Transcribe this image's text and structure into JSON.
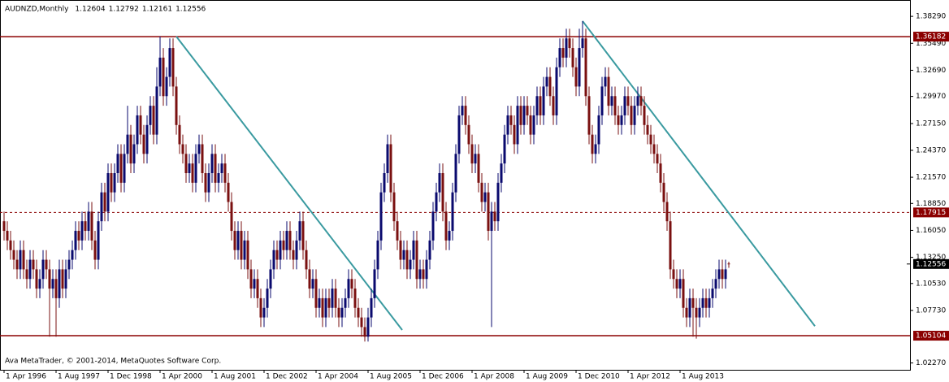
{
  "chart_data": {
    "type": "candlestick",
    "title": "AUDNZD,Monthly",
    "last_ohlc": [
      1.12604,
      1.12792,
      1.12161,
      1.12556
    ],
    "footer": "Ava MetaTrader, © 2001-2014, MetaQuotes Software Corp.",
    "bull_color": "#0a0a6e",
    "bear_color": "#7a1010",
    "level_color": "#8b0000",
    "trend_color": "#3a9aa0",
    "xlim": [
      -1.25,
      278.75
    ],
    "ylim": [
      1.0156,
      1.3999
    ],
    "yticks": [
      {
        "value": 1.3829,
        "label": "1.38290"
      },
      {
        "value": 1.3549,
        "label": "1.35490"
      },
      {
        "value": 1.3269,
        "label": "1.32690"
      },
      {
        "value": 1.2997,
        "label": "1.29970"
      },
      {
        "value": 1.2715,
        "label": "1.27150"
      },
      {
        "value": 1.2437,
        "label": "1.24370"
      },
      {
        "value": 1.2157,
        "label": "1.21570"
      },
      {
        "value": 1.1885,
        "label": "1.18850"
      },
      {
        "value": 1.1605,
        "label": "1.16050"
      },
      {
        "value": 1.1325,
        "label": "1.13250"
      },
      {
        "value": 1.1053,
        "label": "1.10530"
      },
      {
        "value": 1.0773,
        "label": "1.07730"
      },
      {
        "value": 1.0227,
        "label": "1.02270"
      }
    ],
    "xticks": [
      {
        "value": 0,
        "label": "1 Apr 1996"
      },
      {
        "value": 16,
        "label": "1 Aug 1997"
      },
      {
        "value": 32,
        "label": "1 Dec 1998"
      },
      {
        "value": 48,
        "label": "1 Apr 2000"
      },
      {
        "value": 64,
        "label": "1 Aug 2001"
      },
      {
        "value": 80,
        "label": "1 Dec 2002"
      },
      {
        "value": 96,
        "label": "1 Apr 2004"
      },
      {
        "value": 112,
        "label": "1 Aug 2005"
      },
      {
        "value": 128,
        "label": "1 Dec 2006"
      },
      {
        "value": 144,
        "label": "1 Apr 2008"
      },
      {
        "value": 160,
        "label": "1 Aug 2009"
      },
      {
        "value": 176,
        "label": "1 Dec 2010"
      },
      {
        "value": 192,
        "label": "1 Apr 2012"
      },
      {
        "value": 208,
        "label": "1 Aug 2013"
      }
    ],
    "levels": [
      {
        "value": 1.36182,
        "dashed": false
      },
      {
        "value": 1.17915,
        "dashed": true
      },
      {
        "value": 1.05104,
        "dashed": false
      }
    ],
    "current_price": 1.12556,
    "trendlines": [
      {
        "start": [
          53,
          1.362
        ],
        "end": [
          122.5,
          1.057
        ]
      },
      {
        "start": [
          178,
          1.378
        ],
        "end": [
          249.5,
          1.061
        ]
      }
    ],
    "candles": [
      [
        1.17,
        1.18,
        1.15,
        1.16
      ],
      [
        1.16,
        1.17,
        1.14,
        1.15
      ],
      [
        1.15,
        1.16,
        1.13,
        1.14
      ],
      [
        1.14,
        1.15,
        1.12,
        1.13
      ],
      [
        1.13,
        1.14,
        1.11,
        1.12
      ],
      [
        1.12,
        1.15,
        1.11,
        1.14
      ],
      [
        1.14,
        1.15,
        1.11,
        1.12
      ],
      [
        1.12,
        1.13,
        1.1,
        1.11
      ],
      [
        1.11,
        1.14,
        1.1,
        1.13
      ],
      [
        1.13,
        1.14,
        1.11,
        1.12
      ],
      [
        1.12,
        1.13,
        1.09,
        1.1
      ],
      [
        1.1,
        1.12,
        1.09,
        1.11
      ],
      [
        1.11,
        1.14,
        1.1,
        1.13
      ],
      [
        1.13,
        1.14,
        1.11,
        1.12
      ],
      [
        1.12,
        1.13,
        1.05,
        1.1
      ],
      [
        1.1,
        1.12,
        1.09,
        1.11
      ],
      [
        1.11,
        1.12,
        1.05,
        1.09
      ],
      [
        1.09,
        1.13,
        1.08,
        1.12
      ],
      [
        1.12,
        1.13,
        1.09,
        1.1
      ],
      [
        1.1,
        1.13,
        1.09,
        1.12
      ],
      [
        1.12,
        1.14,
        1.11,
        1.13
      ],
      [
        1.13,
        1.15,
        1.12,
        1.14
      ],
      [
        1.14,
        1.17,
        1.13,
        1.16
      ],
      [
        1.16,
        1.17,
        1.14,
        1.15
      ],
      [
        1.15,
        1.18,
        1.14,
        1.17
      ],
      [
        1.17,
        1.18,
        1.15,
        1.16
      ],
      [
        1.16,
        1.19,
        1.15,
        1.18
      ],
      [
        1.18,
        1.19,
        1.14,
        1.15
      ],
      [
        1.15,
        1.16,
        1.12,
        1.13
      ],
      [
        1.13,
        1.18,
        1.12,
        1.17
      ],
      [
        1.17,
        1.21,
        1.16,
        1.2
      ],
      [
        1.2,
        1.21,
        1.17,
        1.18
      ],
      [
        1.18,
        1.23,
        1.17,
        1.22
      ],
      [
        1.22,
        1.23,
        1.19,
        1.2
      ],
      [
        1.2,
        1.23,
        1.19,
        1.22
      ],
      [
        1.22,
        1.25,
        1.21,
        1.24
      ],
      [
        1.24,
        1.25,
        1.2,
        1.21
      ],
      [
        1.21,
        1.25,
        1.2,
        1.24
      ],
      [
        1.24,
        1.29,
        1.23,
        1.26
      ],
      [
        1.26,
        1.27,
        1.22,
        1.23
      ],
      [
        1.23,
        1.26,
        1.22,
        1.25
      ],
      [
        1.25,
        1.29,
        1.24,
        1.28
      ],
      [
        1.28,
        1.29,
        1.25,
        1.26
      ],
      [
        1.26,
        1.27,
        1.23,
        1.24
      ],
      [
        1.24,
        1.28,
        1.23,
        1.27
      ],
      [
        1.27,
        1.3,
        1.26,
        1.29
      ],
      [
        1.29,
        1.3,
        1.25,
        1.26
      ],
      [
        1.26,
        1.33,
        1.25,
        1.31
      ],
      [
        1.31,
        1.362,
        1.3,
        1.34
      ],
      [
        1.34,
        1.35,
        1.29,
        1.3
      ],
      [
        1.3,
        1.33,
        1.29,
        1.32
      ],
      [
        1.32,
        1.36,
        1.31,
        1.35
      ],
      [
        1.35,
        1.36,
        1.3,
        1.31
      ],
      [
        1.31,
        1.32,
        1.26,
        1.27
      ],
      [
        1.27,
        1.28,
        1.24,
        1.25
      ],
      [
        1.25,
        1.26,
        1.23,
        1.24
      ],
      [
        1.24,
        1.25,
        1.21,
        1.22
      ],
      [
        1.22,
        1.24,
        1.21,
        1.23
      ],
      [
        1.23,
        1.24,
        1.2,
        1.21
      ],
      [
        1.21,
        1.25,
        1.2,
        1.24
      ],
      [
        1.24,
        1.26,
        1.23,
        1.25
      ],
      [
        1.25,
        1.26,
        1.21,
        1.22
      ],
      [
        1.22,
        1.23,
        1.19,
        1.2
      ],
      [
        1.2,
        1.23,
        1.19,
        1.22
      ],
      [
        1.22,
        1.25,
        1.21,
        1.24
      ],
      [
        1.24,
        1.25,
        1.2,
        1.21
      ],
      [
        1.21,
        1.23,
        1.2,
        1.22
      ],
      [
        1.22,
        1.24,
        1.21,
        1.23
      ],
      [
        1.23,
        1.24,
        1.2,
        1.21
      ],
      [
        1.21,
        1.22,
        1.18,
        1.19
      ],
      [
        1.19,
        1.2,
        1.15,
        1.16
      ],
      [
        1.16,
        1.17,
        1.13,
        1.14
      ],
      [
        1.14,
        1.17,
        1.13,
        1.16
      ],
      [
        1.16,
        1.17,
        1.12,
        1.13
      ],
      [
        1.13,
        1.16,
        1.12,
        1.15
      ],
      [
        1.15,
        1.16,
        1.11,
        1.12
      ],
      [
        1.12,
        1.13,
        1.09,
        1.1
      ],
      [
        1.1,
        1.12,
        1.09,
        1.11
      ],
      [
        1.11,
        1.12,
        1.08,
        1.09
      ],
      [
        1.09,
        1.1,
        1.06,
        1.07
      ],
      [
        1.07,
        1.09,
        1.06,
        1.08
      ],
      [
        1.08,
        1.11,
        1.07,
        1.1
      ],
      [
        1.1,
        1.13,
        1.09,
        1.12
      ],
      [
        1.12,
        1.15,
        1.11,
        1.14
      ],
      [
        1.14,
        1.15,
        1.12,
        1.13
      ],
      [
        1.13,
        1.16,
        1.12,
        1.15
      ],
      [
        1.15,
        1.16,
        1.13,
        1.14
      ],
      [
        1.14,
        1.17,
        1.13,
        1.16
      ],
      [
        1.16,
        1.17,
        1.13,
        1.14
      ],
      [
        1.14,
        1.15,
        1.12,
        1.13
      ],
      [
        1.13,
        1.16,
        1.12,
        1.15
      ],
      [
        1.15,
        1.18,
        1.14,
        1.17
      ],
      [
        1.17,
        1.18,
        1.13,
        1.14
      ],
      [
        1.14,
        1.15,
        1.11,
        1.12
      ],
      [
        1.12,
        1.13,
        1.09,
        1.1
      ],
      [
        1.1,
        1.12,
        1.09,
        1.11
      ],
      [
        1.11,
        1.12,
        1.07,
        1.08
      ],
      [
        1.08,
        1.1,
        1.07,
        1.09
      ],
      [
        1.09,
        1.1,
        1.06,
        1.07
      ],
      [
        1.07,
        1.1,
        1.06,
        1.09
      ],
      [
        1.09,
        1.1,
        1.07,
        1.08
      ],
      [
        1.08,
        1.11,
        1.07,
        1.1
      ],
      [
        1.1,
        1.11,
        1.07,
        1.08
      ],
      [
        1.08,
        1.09,
        1.06,
        1.07
      ],
      [
        1.07,
        1.09,
        1.06,
        1.08
      ],
      [
        1.08,
        1.1,
        1.07,
        1.09
      ],
      [
        1.09,
        1.12,
        1.08,
        1.11
      ],
      [
        1.11,
        1.12,
        1.09,
        1.1
      ],
      [
        1.1,
        1.11,
        1.07,
        1.08
      ],
      [
        1.08,
        1.09,
        1.06,
        1.07
      ],
      [
        1.07,
        1.08,
        1.05,
        1.06
      ],
      [
        1.06,
        1.07,
        1.045,
        1.05
      ],
      [
        1.05,
        1.08,
        1.045,
        1.07
      ],
      [
        1.07,
        1.1,
        1.06,
        1.09
      ],
      [
        1.09,
        1.13,
        1.08,
        1.12
      ],
      [
        1.12,
        1.16,
        1.11,
        1.15
      ],
      [
        1.15,
        1.21,
        1.14,
        1.2
      ],
      [
        1.2,
        1.23,
        1.19,
        1.22
      ],
      [
        1.22,
        1.26,
        1.21,
        1.25
      ],
      [
        1.25,
        1.26,
        1.19,
        1.2
      ],
      [
        1.2,
        1.21,
        1.16,
        1.17
      ],
      [
        1.17,
        1.18,
        1.14,
        1.15
      ],
      [
        1.15,
        1.16,
        1.12,
        1.13
      ],
      [
        1.13,
        1.15,
        1.12,
        1.14
      ],
      [
        1.14,
        1.15,
        1.11,
        1.12
      ],
      [
        1.12,
        1.14,
        1.11,
        1.13
      ],
      [
        1.13,
        1.16,
        1.12,
        1.15
      ],
      [
        1.15,
        1.16,
        1.1,
        1.11
      ],
      [
        1.11,
        1.13,
        1.1,
        1.12
      ],
      [
        1.12,
        1.13,
        1.1,
        1.11
      ],
      [
        1.11,
        1.14,
        1.1,
        1.13
      ],
      [
        1.13,
        1.16,
        1.12,
        1.15
      ],
      [
        1.15,
        1.19,
        1.14,
        1.18
      ],
      [
        1.18,
        1.21,
        1.17,
        1.2
      ],
      [
        1.2,
        1.23,
        1.19,
        1.22
      ],
      [
        1.22,
        1.23,
        1.17,
        1.18
      ],
      [
        1.18,
        1.19,
        1.14,
        1.15
      ],
      [
        1.15,
        1.17,
        1.14,
        1.16
      ],
      [
        1.16,
        1.21,
        1.15,
        1.2
      ],
      [
        1.2,
        1.25,
        1.19,
        1.24
      ],
      [
        1.24,
        1.29,
        1.23,
        1.28
      ],
      [
        1.28,
        1.3,
        1.27,
        1.29
      ],
      [
        1.29,
        1.3,
        1.26,
        1.27
      ],
      [
        1.27,
        1.28,
        1.24,
        1.25
      ],
      [
        1.25,
        1.26,
        1.22,
        1.23
      ],
      [
        1.23,
        1.25,
        1.22,
        1.24
      ],
      [
        1.24,
        1.25,
        1.2,
        1.21
      ],
      [
        1.21,
        1.22,
        1.18,
        1.19
      ],
      [
        1.19,
        1.21,
        1.18,
        1.2
      ],
      [
        1.2,
        1.21,
        1.15,
        1.16
      ],
      [
        1.16,
        1.19,
        1.06,
        1.18
      ],
      [
        1.18,
        1.19,
        1.16,
        1.17
      ],
      [
        1.17,
        1.22,
        1.16,
        1.21
      ],
      [
        1.21,
        1.24,
        1.2,
        1.23
      ],
      [
        1.23,
        1.27,
        1.22,
        1.26
      ],
      [
        1.26,
        1.29,
        1.25,
        1.28
      ],
      [
        1.28,
        1.29,
        1.26,
        1.27
      ],
      [
        1.27,
        1.28,
        1.24,
        1.25
      ],
      [
        1.25,
        1.3,
        1.24,
        1.29
      ],
      [
        1.29,
        1.3,
        1.26,
        1.27
      ],
      [
        1.27,
        1.3,
        1.26,
        1.29
      ],
      [
        1.29,
        1.3,
        1.27,
        1.28
      ],
      [
        1.28,
        1.29,
        1.25,
        1.26
      ],
      [
        1.26,
        1.29,
        1.25,
        1.28
      ],
      [
        1.28,
        1.31,
        1.27,
        1.3
      ],
      [
        1.3,
        1.31,
        1.27,
        1.28
      ],
      [
        1.28,
        1.32,
        1.27,
        1.31
      ],
      [
        1.31,
        1.33,
        1.3,
        1.32
      ],
      [
        1.32,
        1.33,
        1.29,
        1.3
      ],
      [
        1.3,
        1.31,
        1.27,
        1.28
      ],
      [
        1.28,
        1.34,
        1.27,
        1.33
      ],
      [
        1.33,
        1.36,
        1.32,
        1.35
      ],
      [
        1.35,
        1.36,
        1.33,
        1.34
      ],
      [
        1.34,
        1.37,
        1.33,
        1.36
      ],
      [
        1.36,
        1.37,
        1.34,
        1.35
      ],
      [
        1.35,
        1.36,
        1.32,
        1.33
      ],
      [
        1.33,
        1.34,
        1.3,
        1.31
      ],
      [
        1.31,
        1.37,
        1.3,
        1.35
      ],
      [
        1.35,
        1.378,
        1.34,
        1.36
      ],
      [
        1.36,
        1.37,
        1.29,
        1.3
      ],
      [
        1.3,
        1.31,
        1.25,
        1.26
      ],
      [
        1.26,
        1.27,
        1.23,
        1.24
      ],
      [
        1.24,
        1.26,
        1.23,
        1.25
      ],
      [
        1.25,
        1.29,
        1.24,
        1.28
      ],
      [
        1.28,
        1.32,
        1.27,
        1.31
      ],
      [
        1.31,
        1.33,
        1.3,
        1.32
      ],
      [
        1.32,
        1.33,
        1.28,
        1.29
      ],
      [
        1.29,
        1.31,
        1.28,
        1.3
      ],
      [
        1.3,
        1.31,
        1.27,
        1.28
      ],
      [
        1.28,
        1.29,
        1.26,
        1.27
      ],
      [
        1.27,
        1.29,
        1.26,
        1.28
      ],
      [
        1.28,
        1.31,
        1.27,
        1.3
      ],
      [
        1.3,
        1.31,
        1.28,
        1.29
      ],
      [
        1.29,
        1.3,
        1.26,
        1.27
      ],
      [
        1.27,
        1.3,
        1.26,
        1.29
      ],
      [
        1.29,
        1.31,
        1.28,
        1.3
      ],
      [
        1.3,
        1.31,
        1.28,
        1.29
      ],
      [
        1.29,
        1.3,
        1.26,
        1.27
      ],
      [
        1.27,
        1.28,
        1.25,
        1.26
      ],
      [
        1.26,
        1.27,
        1.24,
        1.25
      ],
      [
        1.25,
        1.26,
        1.23,
        1.24
      ],
      [
        1.24,
        1.25,
        1.22,
        1.23
      ],
      [
        1.23,
        1.24,
        1.2,
        1.21
      ],
      [
        1.21,
        1.22,
        1.18,
        1.19
      ],
      [
        1.19,
        1.2,
        1.16,
        1.17
      ],
      [
        1.17,
        1.18,
        1.11,
        1.12
      ],
      [
        1.12,
        1.13,
        1.1,
        1.11
      ],
      [
        1.11,
        1.12,
        1.09,
        1.1
      ],
      [
        1.1,
        1.12,
        1.09,
        1.11
      ],
      [
        1.11,
        1.12,
        1.07,
        1.08
      ],
      [
        1.08,
        1.09,
        1.06,
        1.07
      ],
      [
        1.07,
        1.1,
        1.06,
        1.09
      ],
      [
        1.09,
        1.1,
        1.05,
        1.08
      ],
      [
        1.08,
        1.09,
        1.048,
        1.07
      ],
      [
        1.07,
        1.09,
        1.06,
        1.08
      ],
      [
        1.08,
        1.1,
        1.07,
        1.09
      ],
      [
        1.09,
        1.1,
        1.07,
        1.08
      ],
      [
        1.08,
        1.1,
        1.07,
        1.09
      ],
      [
        1.09,
        1.11,
        1.08,
        1.1
      ],
      [
        1.1,
        1.12,
        1.09,
        1.11
      ],
      [
        1.11,
        1.13,
        1.1,
        1.12
      ],
      [
        1.12,
        1.13,
        1.1,
        1.11
      ],
      [
        1.11,
        1.13,
        1.1,
        1.12
      ],
      [
        1.12604,
        1.12792,
        1.12161,
        1.12556
      ]
    ]
  }
}
